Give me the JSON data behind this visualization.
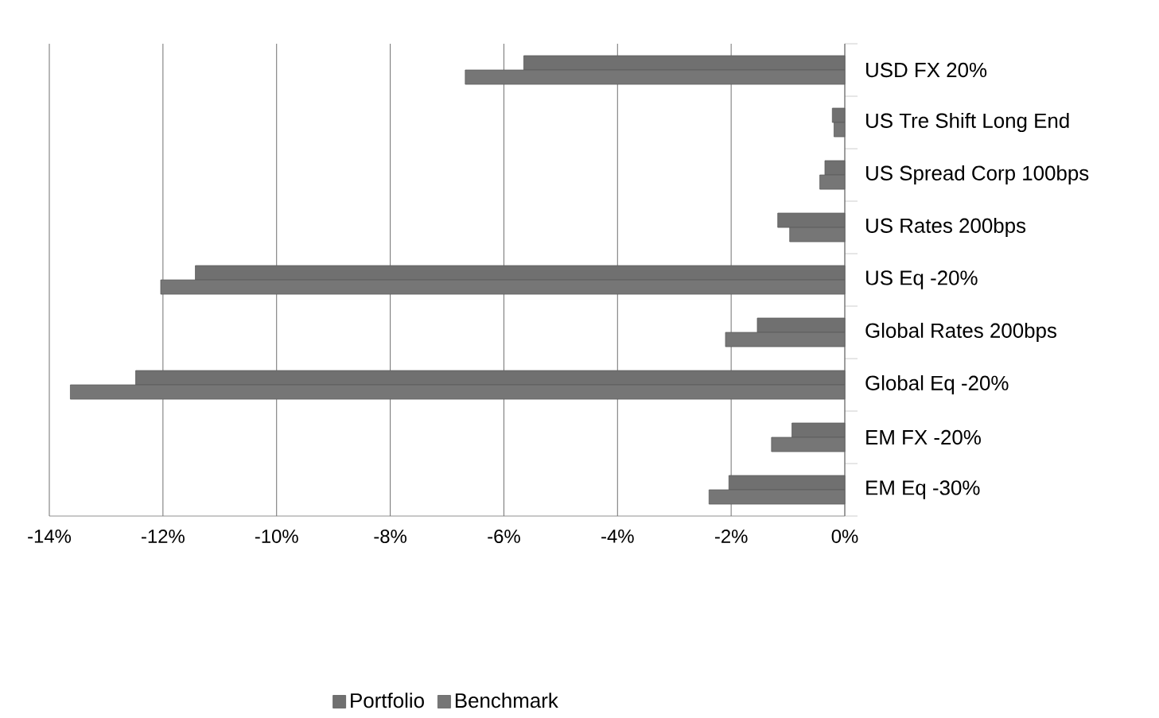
{
  "chart_data": {
    "type": "bar",
    "orientation": "horizontal",
    "categories": [
      "USD FX 20%",
      "US Tre Shift Long End",
      "US Spread Corp 100bps",
      "US Rates 200bps",
      "US Eq -20%",
      "Global Rates 200bps",
      "Global Eq -20%",
      "EM FX -20%",
      "EM Eq -30%"
    ],
    "series": [
      {
        "name": "Portfolio",
        "color": "#707070",
        "values": [
          -5.65,
          -0.22,
          -0.35,
          -1.18,
          -11.43,
          -1.54,
          -12.48,
          -0.93,
          -2.04
        ]
      },
      {
        "name": "Benchmark",
        "color": "#767676",
        "values": [
          -6.68,
          -0.19,
          -0.44,
          -0.97,
          -12.04,
          -2.1,
          -13.63,
          -1.29,
          -2.39
        ]
      }
    ],
    "xlim": [
      -14,
      0
    ],
    "xticks": [
      {
        "value": -14,
        "label": "-14%"
      },
      {
        "value": -12,
        "label": "-12%"
      },
      {
        "value": -10,
        "label": "-10%"
      },
      {
        "value": -8,
        "label": "-8%"
      },
      {
        "value": -6,
        "label": "-6%"
      },
      {
        "value": -4,
        "label": "-4%"
      },
      {
        "value": -2,
        "label": "-2%"
      },
      {
        "value": 0,
        "label": "0%"
      }
    ],
    "grid": "x",
    "legend": "bottom"
  }
}
